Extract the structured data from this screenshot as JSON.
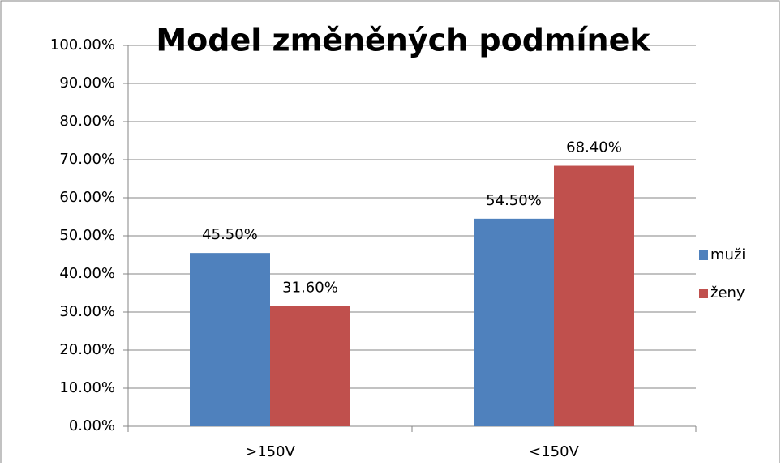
{
  "chart_data": {
    "type": "bar",
    "title": "Model změněných podmínek",
    "categories": [
      ">150V",
      "<150V"
    ],
    "series": [
      {
        "name": "muži",
        "color": "#4f81bd",
        "values": [
          45.5,
          54.5
        ],
        "value_labels": [
          "45.50%",
          "54.50%"
        ]
      },
      {
        "name": "ženy",
        "color": "#c0504d",
        "values": [
          31.6,
          68.4
        ],
        "value_labels": [
          "31.60%",
          "68.40%"
        ]
      }
    ],
    "ylim": [
      0,
      100
    ],
    "yticks": [
      {
        "value": 0,
        "label": "0.00%"
      },
      {
        "value": 10,
        "label": "10.00%"
      },
      {
        "value": 20,
        "label": "20.00%"
      },
      {
        "value": 30,
        "label": "30.00%"
      },
      {
        "value": 40,
        "label": "40.00%"
      },
      {
        "value": 50,
        "label": "50.00%"
      },
      {
        "value": 60,
        "label": "60.00%"
      },
      {
        "value": 70,
        "label": "70.00%"
      },
      {
        "value": 80,
        "label": "80.00%"
      },
      {
        "value": 90,
        "label": "90.00%"
      },
      {
        "value": 100,
        "label": "100.00%"
      }
    ],
    "grid": true,
    "legend": "right"
  }
}
